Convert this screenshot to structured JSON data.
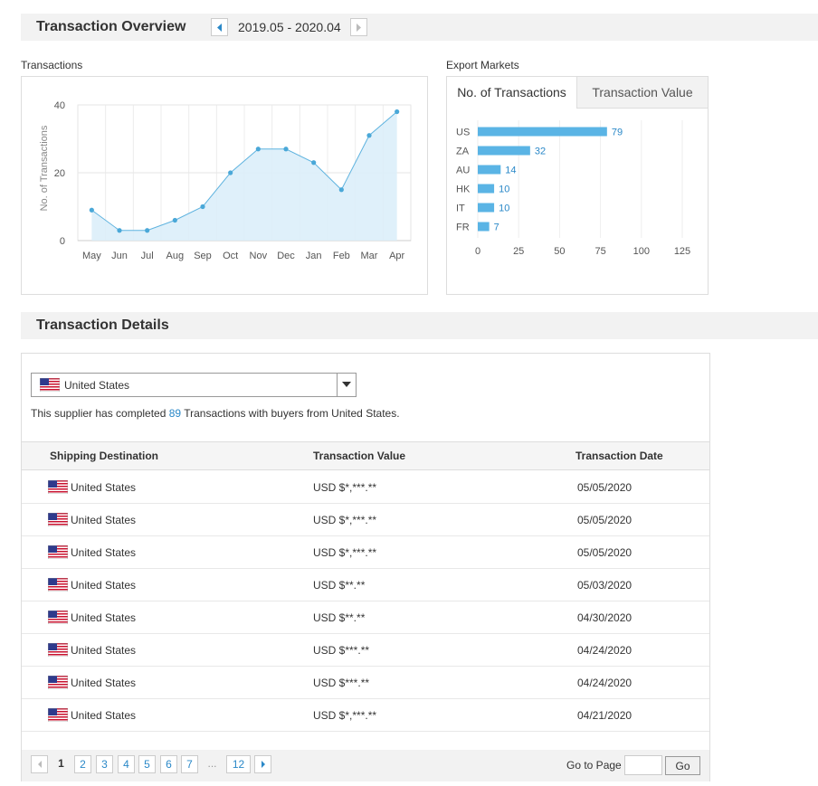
{
  "overview": {
    "title": "Transaction Overview",
    "period": "2019.05 - 2020.04",
    "prev_icon": "triangle-left-icon",
    "next_icon": "triangle-right-icon"
  },
  "transactions_panel": {
    "label": "Transactions"
  },
  "export_panel": {
    "label": "Export Markets",
    "tabs": [
      {
        "label": "No. of Transactions",
        "active": true
      },
      {
        "label": "Transaction Value",
        "active": false
      }
    ]
  },
  "chart_data": [
    {
      "type": "area",
      "title": "",
      "xlabel": "",
      "ylabel": "No. of Transactions",
      "x": [
        "May",
        "Jun",
        "Jul",
        "Aug",
        "Sep",
        "Oct",
        "Nov",
        "Dec",
        "Jan",
        "Feb",
        "Mar",
        "Apr"
      ],
      "values": [
        9,
        3,
        3,
        6,
        10,
        20,
        27,
        27,
        23,
        15,
        31,
        38
      ],
      "ylim": [
        0,
        40
      ],
      "yticks": [
        0,
        20,
        40
      ],
      "grid": true,
      "colors": {
        "line": "#5fb3df",
        "fill": "#dbeef9",
        "point": "#4aa8d8"
      }
    },
    {
      "type": "bar",
      "orientation": "horizontal",
      "title": "",
      "categories": [
        "US",
        "ZA",
        "AU",
        "HK",
        "IT",
        "FR"
      ],
      "values": [
        79,
        32,
        14,
        10,
        10,
        7
      ],
      "xlim": [
        0,
        125
      ],
      "xticks": [
        0,
        25,
        50,
        75,
        100,
        125
      ],
      "grid": true,
      "colors": {
        "bar": "#5ab4e5",
        "label": "#2a88c8"
      }
    }
  ],
  "details": {
    "title": "Transaction Details",
    "selected_country": "United States",
    "flag_icon": "us-flag-icon",
    "summary_prefix": "This supplier has completed ",
    "summary_count": "89",
    "summary_suffix": " Transactions with buyers from United States.",
    "columns": [
      "Shipping Destination",
      "Transaction Value",
      "Transaction Date"
    ],
    "rows": [
      {
        "destination": "United States",
        "value": "USD $*,***.**",
        "date": "05/05/2020"
      },
      {
        "destination": "United States",
        "value": "USD $*,***.**",
        "date": "05/05/2020"
      },
      {
        "destination": "United States",
        "value": "USD $*,***.**",
        "date": "05/05/2020"
      },
      {
        "destination": "United States",
        "value": "USD $**.**",
        "date": "05/03/2020"
      },
      {
        "destination": "United States",
        "value": "USD $**.**",
        "date": "04/30/2020"
      },
      {
        "destination": "United States",
        "value": "USD $***.**",
        "date": "04/24/2020"
      },
      {
        "destination": "United States",
        "value": "USD $***.**",
        "date": "04/24/2020"
      },
      {
        "destination": "United States",
        "value": "USD $*,***.**",
        "date": "04/21/2020"
      }
    ]
  },
  "pagination": {
    "pages": [
      "1",
      "2",
      "3",
      "4",
      "5",
      "6",
      "7"
    ],
    "current": "1",
    "ellipsis": "...",
    "last": "12",
    "goto_label": "Go to Page",
    "goto_value": "",
    "go_label": "Go"
  }
}
